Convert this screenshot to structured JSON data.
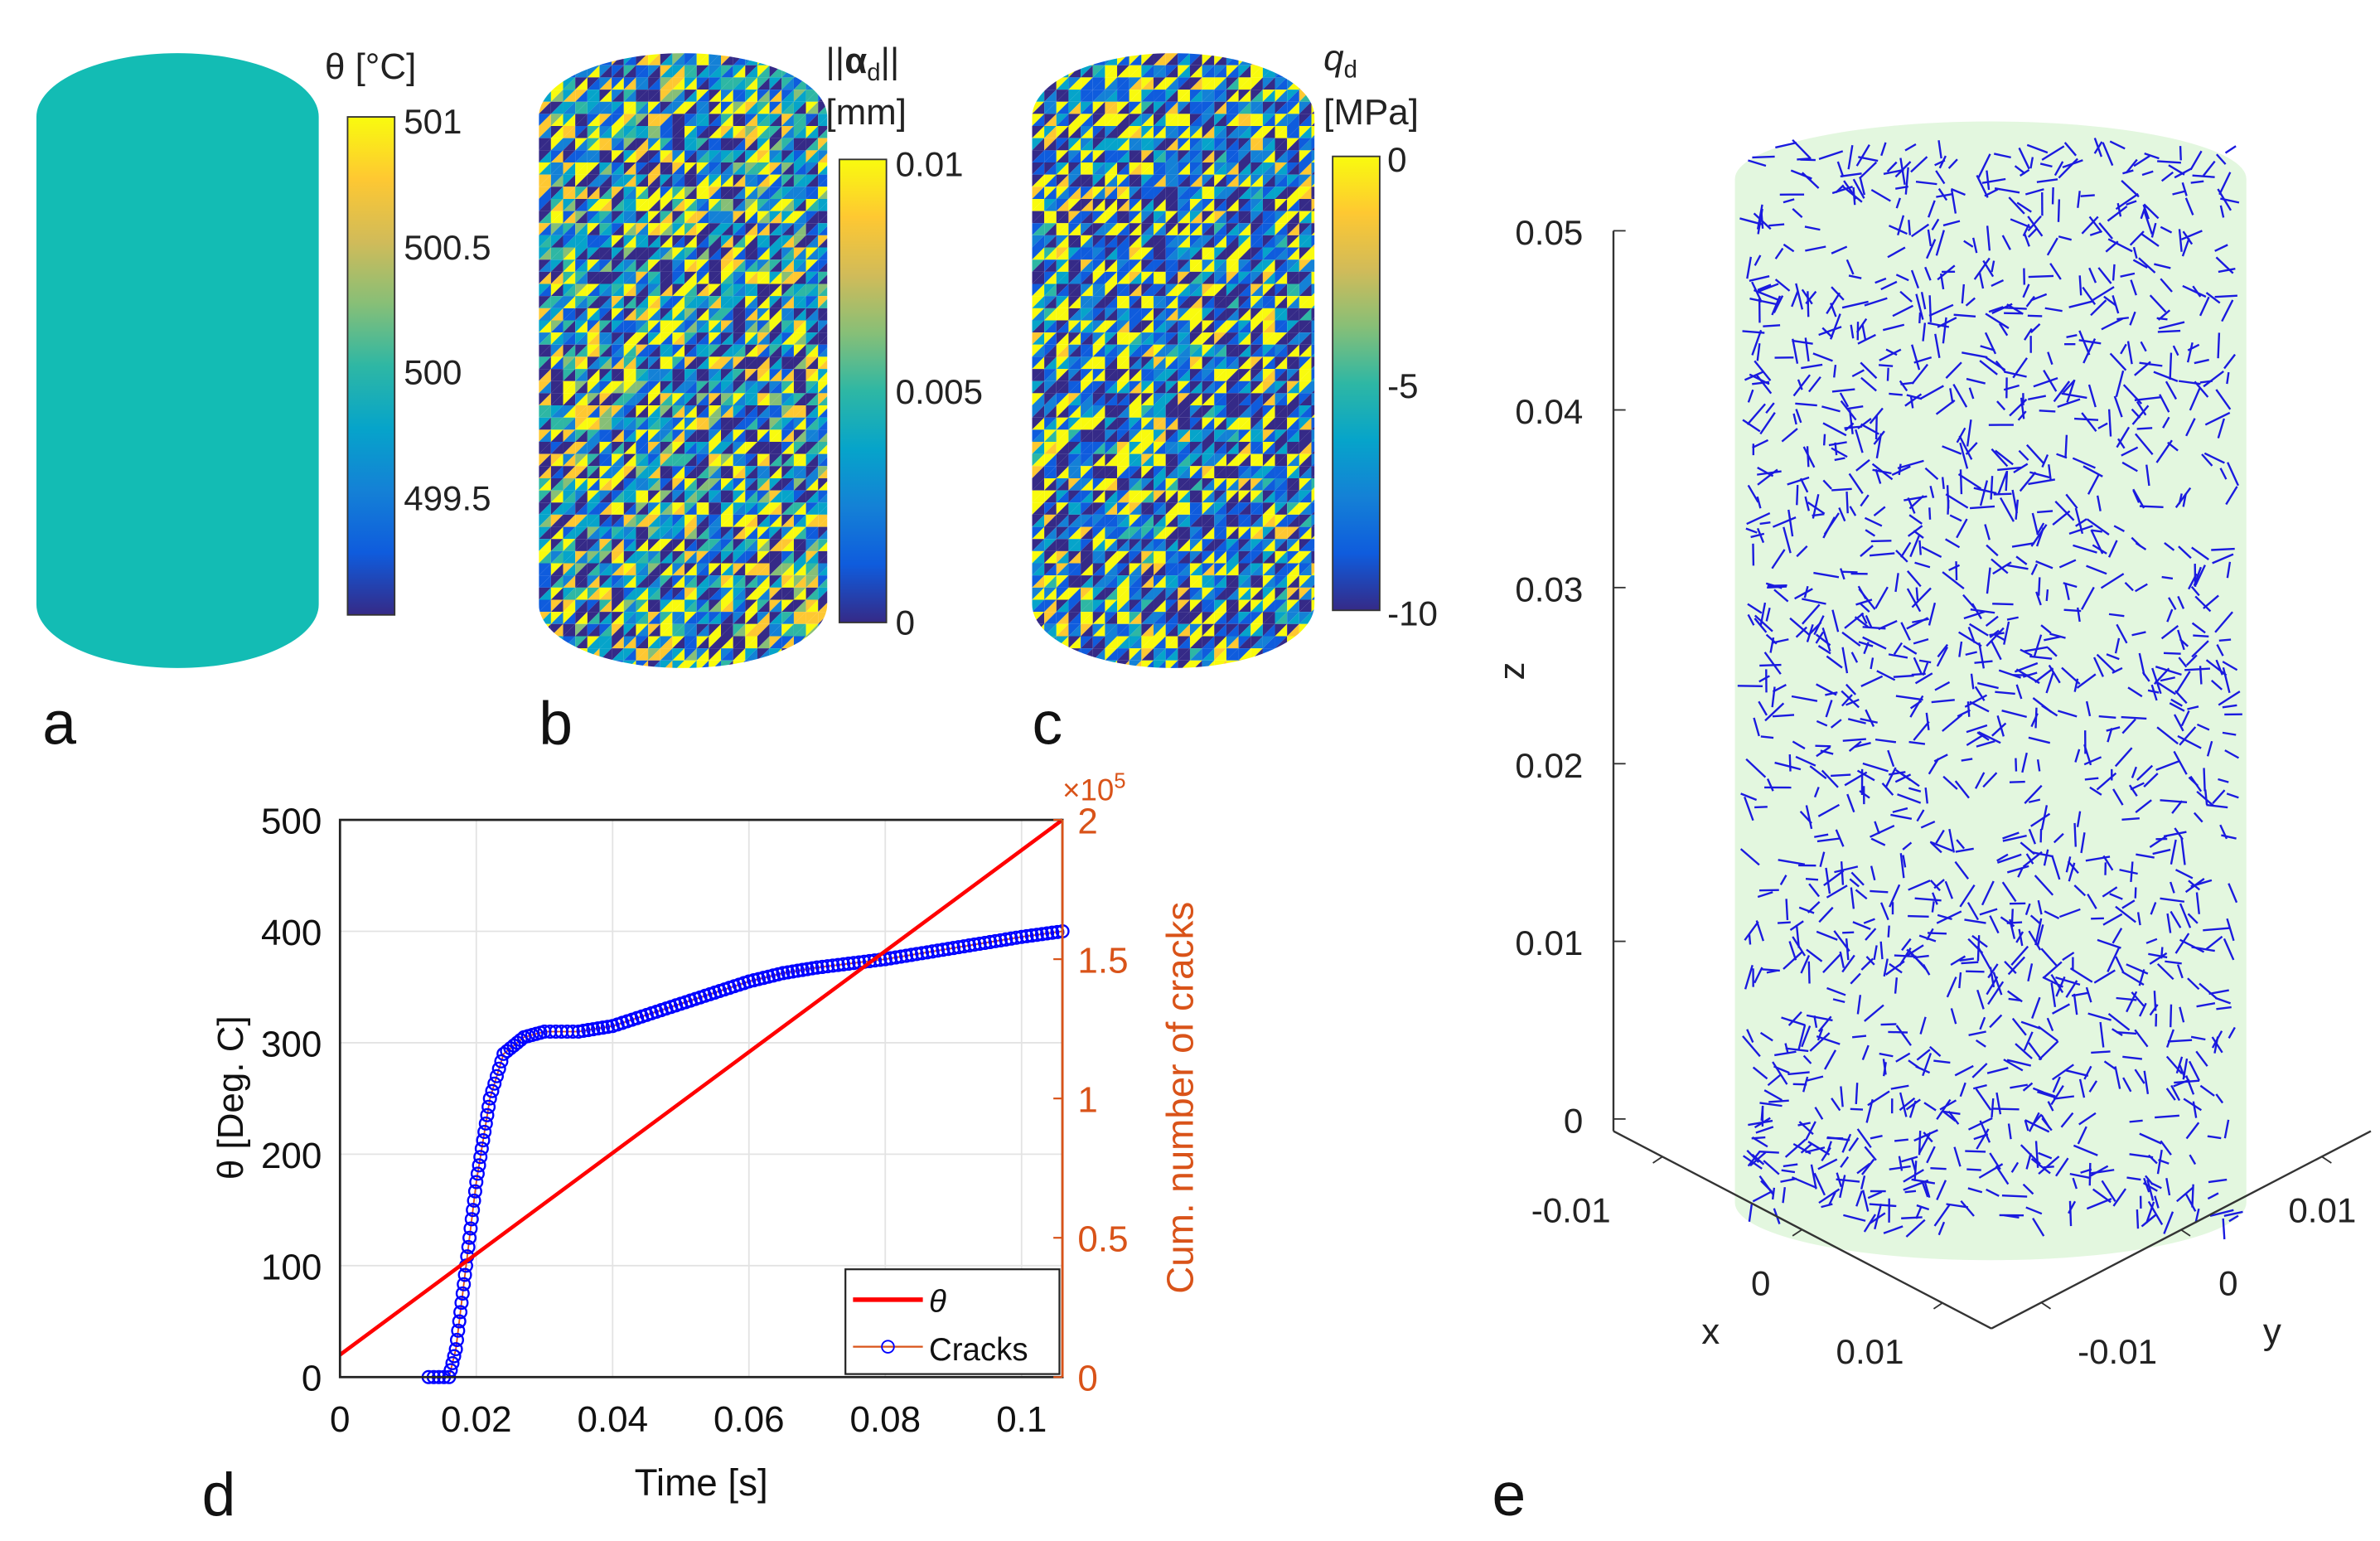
{
  "panels": {
    "a": {
      "label": "a",
      "cb_title": "θ [°C]",
      "cb_ticks": [
        "501",
        "500.5",
        "500",
        "499.5"
      ],
      "fill_color": "#13bcb4"
    },
    "b": {
      "label": "b",
      "cb_title_bars": "||",
      "cb_title_sym": "α",
      "cb_title_sub": "d",
      "cb_title_bars2": "||",
      "cb_unit": "[mm]",
      "cb_ticks": [
        "0.01",
        "0.005",
        "0"
      ]
    },
    "c": {
      "label": "c",
      "cb_title_sym": "q",
      "cb_title_sub": "d",
      "cb_unit": "[MPa]",
      "cb_ticks": [
        "0",
        "-5",
        "-10"
      ]
    },
    "d": {
      "label": "d"
    },
    "e": {
      "label": "e"
    }
  },
  "colormap": [
    "#352a87",
    "#0f5cdd",
    "#1481d6",
    "#06a4ca",
    "#2eb7a4",
    "#87bf77",
    "#d1bb59",
    "#fec832",
    "#f9fb0e"
  ],
  "chart_data": [
    {
      "type": "line",
      "panel": "d",
      "xlabel": "Time [s]",
      "ylabel": "θ [Deg. C]",
      "ylabel_right": "Cum. number of cracks",
      "right_multiplier": "×10",
      "right_exponent": "5",
      "xlim": [
        0,
        0.106
      ],
      "ylim": [
        0,
        500
      ],
      "ylim_right": [
        0,
        200000
      ],
      "x_ticks": [
        "0",
        "0.02",
        "0.04",
        "0.06",
        "0.08",
        "0.1"
      ],
      "y_ticks": [
        "0",
        "100",
        "200",
        "300",
        "400",
        "500"
      ],
      "y_ticks_right": [
        "0",
        "0.5",
        "1",
        "1.5",
        "2"
      ],
      "grid": true,
      "legend": {
        "position": "bottom-right",
        "entries": [
          "θ",
          "Cracks"
        ]
      },
      "colors": {
        "theta": "#ff0000",
        "cracks": "#0000ff",
        "right_axis": "#d95319"
      },
      "series": [
        {
          "name": "θ",
          "axis": "left",
          "x": [
            0,
            0.106
          ],
          "y": [
            20,
            500
          ]
        },
        {
          "name": "Cracks",
          "axis": "right",
          "x": [
            0.013,
            0.016,
            0.017,
            0.018,
            0.019,
            0.02,
            0.022,
            0.024,
            0.027,
            0.03,
            0.035,
            0.04,
            0.045,
            0.05,
            0.055,
            0.06,
            0.065,
            0.07,
            0.08,
            0.09,
            0.1,
            0.106
          ],
          "y": [
            0,
            0,
            10000,
            30000,
            50000,
            70000,
            100000,
            116000,
            122000,
            124000,
            124000,
            126000,
            130000,
            134000,
            138000,
            142000,
            145000,
            147000,
            150000,
            154000,
            158000,
            160000
          ]
        }
      ]
    },
    {
      "type": "scatter",
      "panel": "e",
      "zlabel": "z",
      "xlabel": "x",
      "ylabel": "y",
      "z_ticks": [
        "0",
        "0.01",
        "0.02",
        "0.03",
        "0.04",
        "0.05"
      ],
      "x_ticks": [
        "-0.01",
        "0",
        "0.01"
      ],
      "y_ticks": [
        "-0.01",
        "0",
        "0.01"
      ],
      "cylinder_color": "#e3f7df",
      "crack_color": "#1a1adf"
    }
  ]
}
